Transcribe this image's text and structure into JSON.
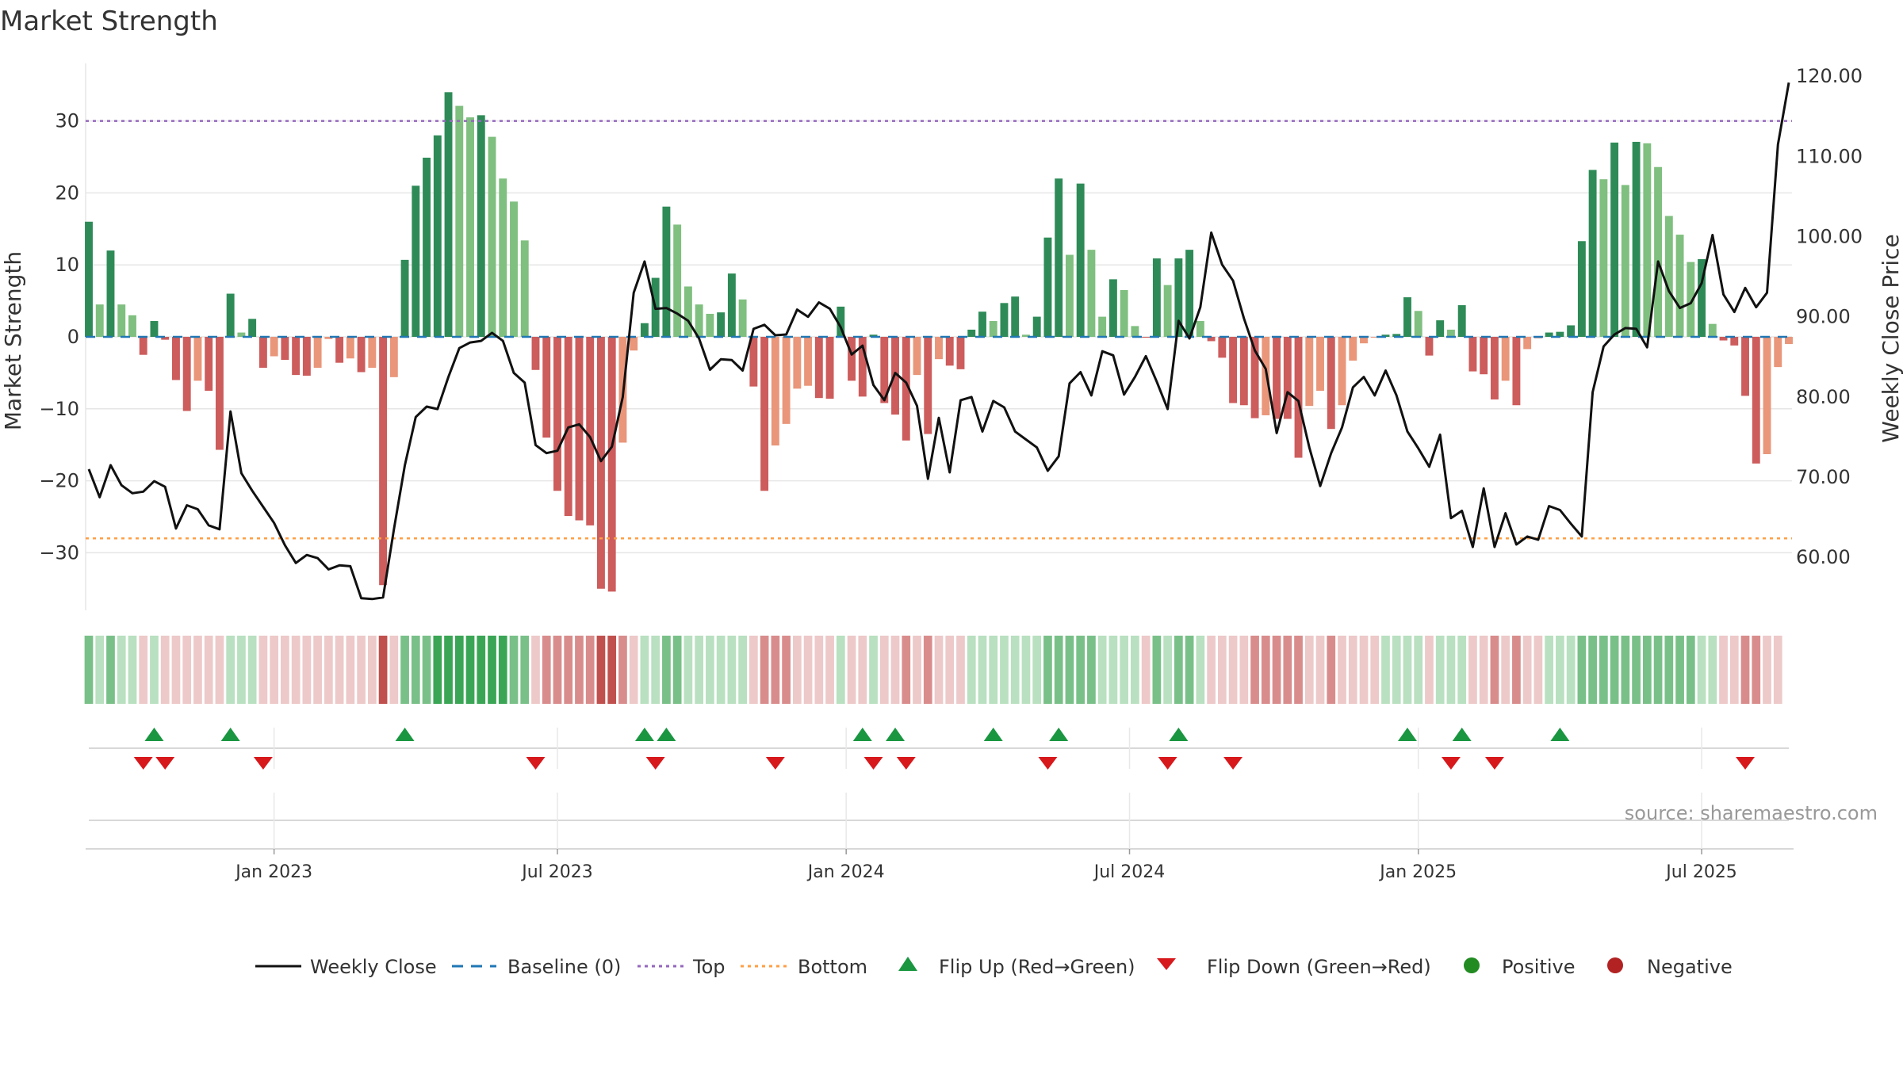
{
  "colors": {
    "pos_dark": "#2e8b57",
    "pos_light": "#7fbf7f",
    "neg_dark": "#cd5c5c",
    "neg_light": "#e9967a",
    "line": "#111111",
    "baseline": "#1f77b4",
    "top": "#9467bd",
    "bottom": "#ff9f45",
    "flip_up": "#1a9641",
    "flip_down": "#d7191c",
    "positive_dot": "#228b22",
    "negative_dot": "#b22222",
    "source": "#999999",
    "grid": "#e6e6e6",
    "text": "#333333"
  },
  "chart_data": {
    "type": "bar",
    "title": "Market Strength",
    "ylabel": "Market Strength",
    "y2label": "Weekly Close Price",
    "source": "source: sharemaestro.com",
    "ylim": [
      -38,
      38
    ],
    "y2lim": [
      53.4,
      121.6
    ],
    "yticks": [
      30,
      20,
      10,
      0,
      -10,
      -20,
      -30
    ],
    "ytick_labels": [
      "30",
      "20",
      "10",
      "0",
      "−10",
      "−20",
      "−30"
    ],
    "y2ticks": [
      120,
      110,
      100,
      90,
      80,
      70,
      60
    ],
    "y2tick_labels": [
      "120.00",
      "110.00",
      "100.00",
      "90.00",
      "80.00",
      "70.00",
      "60.00"
    ],
    "x_start": "2022-09-06",
    "x_end": "2025-10-21",
    "x_ticks": [
      {
        "label": "Jan 2023",
        "week": 17
      },
      {
        "label": "Jul 2023",
        "week": 43
      },
      {
        "label": "Jan 2024",
        "week": 69.5
      },
      {
        "label": "Jul 2024",
        "week": 95.5
      },
      {
        "label": "Jan 2025",
        "week": 122
      },
      {
        "label": "Jul 2025",
        "week": 148
      }
    ],
    "top_level": 30,
    "bottom_level": -28,
    "baseline": 0,
    "strength": [
      16,
      4.5,
      12,
      4.5,
      3,
      -2.5,
      2.2,
      -0.4,
      -6,
      -10.3,
      -6.1,
      -7.5,
      -15.7,
      6,
      0.6,
      2.5,
      -4.3,
      -2.7,
      -3.2,
      -5.3,
      -5.4,
      -4.3,
      -0.3,
      -3.6,
      -3,
      -4.9,
      -4.3,
      -34.5,
      -5.6,
      10.7,
      21,
      24.9,
      28,
      34,
      32.1,
      30.5,
      30.8,
      27.8,
      22,
      18.8,
      13.4,
      -4.6,
      -14,
      -21.4,
      -24.9,
      -25.5,
      -26.2,
      -35,
      -35.4,
      -14.7,
      -1.9,
      1.9,
      8.2,
      18.1,
      15.6,
      7,
      4.5,
      3.2,
      3.4,
      8.8,
      5.2,
      -6.9,
      -21.4,
      -15.1,
      -12.1,
      -7.2,
      -6.8,
      -8.5,
      -8.6,
      4.2,
      -6.1,
      -8.3,
      0.3,
      -9.2,
      -10.8,
      -14.4,
      -5.3,
      -13.5,
      -3.1,
      -4,
      -4.5,
      1,
      3.5,
      2.2,
      4.7,
      5.6,
      0.3,
      2.8,
      13.8,
      22,
      11.4,
      21.3,
      12.1,
      2.8,
      8,
      6.5,
      1.5,
      -0.1,
      10.9,
      7.2,
      10.9,
      12.1,
      2.2,
      -0.6,
      -2.9,
      -9.2,
      -9.5,
      -11.3,
      -10.9,
      -11.4,
      -11.4,
      -16.8,
      -9.6,
      -7.5,
      -12.8,
      -9.5,
      -3.3,
      -0.9,
      -0.1,
      0.3,
      0.4,
      5.5,
      3.6,
      -2.6,
      2.3,
      1,
      4.4,
      -4.8,
      -5.2,
      -8.7,
      -6.1,
      -9.5,
      -1.7,
      -0.2,
      0.6,
      0.7,
      1.6,
      13.3,
      23.2,
      21.9,
      27,
      21.1,
      27.1,
      26.9,
      23.6,
      16.8,
      14.2,
      10.4,
      10.8,
      1.8,
      -0.5,
      -1.2,
      -8.2,
      -17.6,
      -16.3,
      -4.2,
      -1
    ],
    "close": [
      71,
      67.5,
      71.5,
      69,
      68,
      68.2,
      69.5,
      68.8,
      63.6,
      66.5,
      66,
      64,
      63.5,
      78.2,
      70.5,
      68.3,
      66.3,
      64.3,
      61.5,
      59.3,
      60.3,
      59.9,
      58.5,
      59,
      58.9,
      54.9,
      54.8,
      55,
      63.5,
      71.5,
      77.5,
      78.8,
      78.5,
      82.5,
      86.1,
      86.8,
      87,
      88,
      87,
      83,
      81.8,
      74,
      73,
      73.3,
      76.2,
      76.6,
      75,
      72,
      73.8,
      80,
      93,
      96.9,
      91,
      91.1,
      90.4,
      89.5,
      87.3,
      83.4,
      84.7,
      84.6,
      83.3,
      88.5,
      89,
      87.7,
      87.8,
      90.9,
      90,
      91.8,
      91,
      88.7,
      85.3,
      86.4,
      81.5,
      79.6,
      83,
      81.8,
      78.9,
      69.8,
      77.4,
      70.6,
      79.6,
      80,
      75.7,
      79.5,
      78.7,
      75.7,
      74.7,
      73.7,
      70.8,
      72.6,
      81.7,
      83.1,
      80.2,
      85.7,
      85.2,
      80.3,
      82.5,
      85.1,
      81.9,
      78.5,
      89.5,
      87.3,
      91.2,
      100.5,
      96.5,
      94.5,
      89.8,
      85.8,
      83.5,
      75.5,
      80.6,
      79.5,
      73.7,
      68.9,
      73,
      76.2,
      81.2,
      82.5,
      80.2,
      83.3,
      80.2,
      75.7,
      73.6,
      71.3,
      75.3,
      64.9,
      65.8,
      61.3,
      68.6,
      61.3,
      65.5,
      61.6,
      62.6,
      62.2,
      66.4,
      65.9,
      64.2,
      62.6,
      80.6,
      86.3,
      87.8,
      88.6,
      88.5,
      86.2,
      96.9,
      93.2,
      91.1,
      91.7,
      94.2,
      100.2,
      92.8,
      90.6,
      93.6,
      91.2,
      93,
      111.5,
      119.2
    ],
    "heat_strip": [
      2,
      1,
      2,
      1,
      1,
      -1,
      1,
      -1,
      -1,
      -1,
      -1,
      -1,
      -1,
      1,
      1,
      1,
      -1,
      -1,
      -1,
      -1,
      -1,
      -1,
      -1,
      -1,
      -1,
      -1,
      -1,
      -3,
      -1,
      2,
      2,
      2,
      3,
      3,
      3,
      3,
      3,
      3,
      3,
      2,
      2,
      -1,
      -2,
      -2,
      -2,
      -2,
      -2,
      -3,
      -3,
      -2,
      -1,
      1,
      1,
      2,
      2,
      1,
      1,
      1,
      1,
      1,
      1,
      -1,
      -2,
      -2,
      -2,
      -1,
      -1,
      -1,
      -1,
      1,
      -1,
      -1,
      1,
      -1,
      -1,
      -2,
      -1,
      -2,
      -1,
      -1,
      -1,
      1,
      1,
      1,
      1,
      1,
      1,
      1,
      2,
      2,
      2,
      2,
      2,
      1,
      1,
      1,
      1,
      -1,
      2,
      1,
      2,
      2,
      1,
      -1,
      -1,
      -1,
      -1,
      -2,
      -2,
      -2,
      -2,
      -2,
      -1,
      -1,
      -2,
      -1,
      -1,
      -1,
      -1,
      1,
      1,
      1,
      1,
      -1,
      1,
      1,
      1,
      -1,
      -1,
      -2,
      -1,
      -2,
      -1,
      -1,
      1,
      1,
      1,
      2,
      2,
      2,
      2,
      2,
      2,
      2,
      2,
      2,
      2,
      2,
      1,
      1,
      -1,
      -1,
      -2,
      -2,
      -1,
      -1
    ],
    "flip_up_weeks": [
      6,
      13,
      29,
      51,
      53,
      71,
      74,
      83,
      89,
      100,
      121,
      126,
      135
    ],
    "flip_down_weeks": [
      5,
      7,
      16,
      41,
      52,
      63,
      72,
      75,
      88,
      99,
      105,
      125,
      129,
      152
    ]
  },
  "legend": {
    "weekly_close": "Weekly Close",
    "baseline": "Baseline (0)",
    "top": "Top",
    "bottom": "Bottom",
    "flip_up": "Flip Up (Red→Green)",
    "flip_down": "Flip Down (Green→Red)",
    "positive": "Positive",
    "negative": "Negative"
  }
}
